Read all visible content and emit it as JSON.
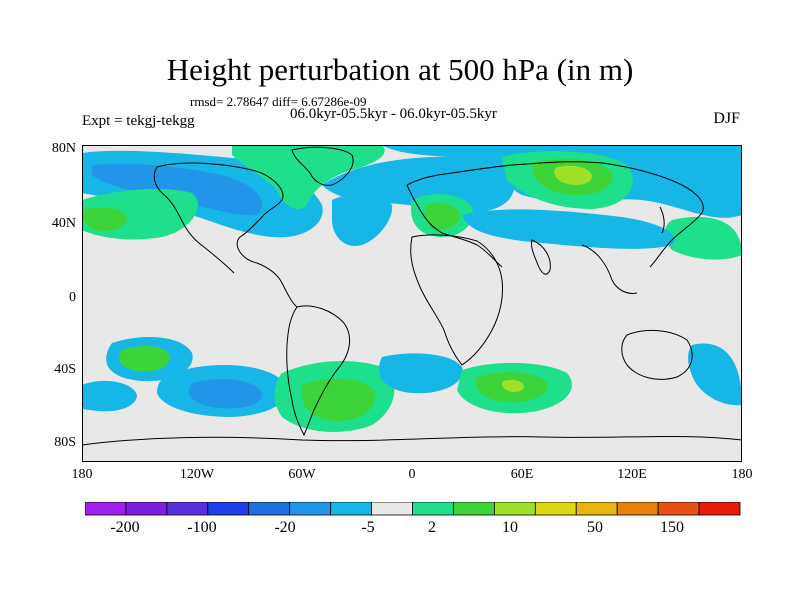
{
  "title": "Height perturbation at 500 hPa (in m)",
  "stats": "rmsd= 2.78647 diff= 6.67286e-09",
  "period": "06.0kyr-05.5kyr - 06.0kyr-05.5kyr",
  "experiment": "Expt = tekgj-tekgg",
  "season": "DJF",
  "lat_labels": [
    "80N",
    "40N",
    "0",
    "40S",
    "80S"
  ],
  "lon_labels": [
    "180",
    "120W",
    "60W",
    "0",
    "60E",
    "120E",
    "180"
  ],
  "colorbar": {
    "colors": [
      "#a020f0",
      "#7b1fe0",
      "#5a2fe0",
      "#1e3fe8",
      "#1e70e0",
      "#2196e8",
      "#16b6e6",
      "#e8e8e8",
      "#1ee08c",
      "#3dd43a",
      "#a0e028",
      "#dcd810",
      "#e8b410",
      "#e8820a",
      "#e85014",
      "#e81c0a"
    ],
    "labels": [
      "-200",
      "-100",
      "-20",
      "-5",
      "2",
      "10",
      "50",
      "150"
    ]
  },
  "map": {
    "background": "#e8e8e8",
    "levels": {
      "neg_light": "#16b6e6",
      "neg_mid": "#2196e8",
      "neg_dark": "#1e70e0",
      "pos_light": "#1ee08c",
      "pos_mid": "#3dd43a",
      "pos_high": "#a0e028",
      "pos_top": "#dcd810"
    }
  }
}
